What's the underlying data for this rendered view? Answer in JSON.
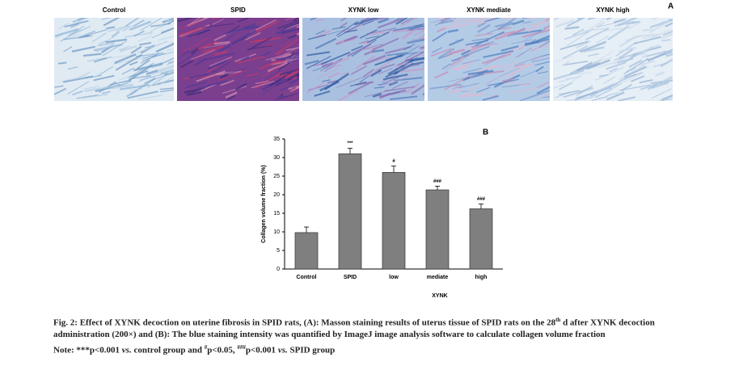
{
  "panel_a": {
    "label": "A",
    "titles": [
      "Control",
      "SPID",
      "XYNK low",
      "XYNK mediate",
      "XYNK high"
    ]
  },
  "chart_data": {
    "type": "bar",
    "label": "B",
    "x_label": "XYNK",
    "y_label": "Collagen volume fraction (%)",
    "categories": [
      "Control",
      "SPID",
      "low",
      "mediate",
      "high"
    ],
    "values": [
      9.8,
      31,
      26,
      21.3,
      16.2
    ],
    "errors": [
      1.5,
      1.5,
      1.7,
      1.0,
      1.3
    ],
    "annotations": [
      null,
      "***",
      "#",
      "###",
      "###"
    ],
    "color": "#7f7f7f",
    "ylim": [
      0,
      35
    ],
    "yticks": [
      0,
      5,
      10,
      15,
      20,
      25,
      30,
      35
    ]
  },
  "caption": {
    "parts": [
      "Fig. 2: Effect of XYNK decoction on uterine fibrosis in SPID rats, (A): Masson staining results of uterus tissue of SPID rats on the 28",
      "th",
      " d after XYNK decoction administration (200×) and (B): The blue staining intensity was quantified by ImageJ image analysis software to calculate collagen volume fraction"
    ],
    "note": [
      "Note: ***p<0.001 ",
      "vs.",
      " control group and ",
      "#",
      "p<0.05, ",
      "###",
      "p<0.001 ",
      "vs.",
      " SPID group"
    ]
  }
}
